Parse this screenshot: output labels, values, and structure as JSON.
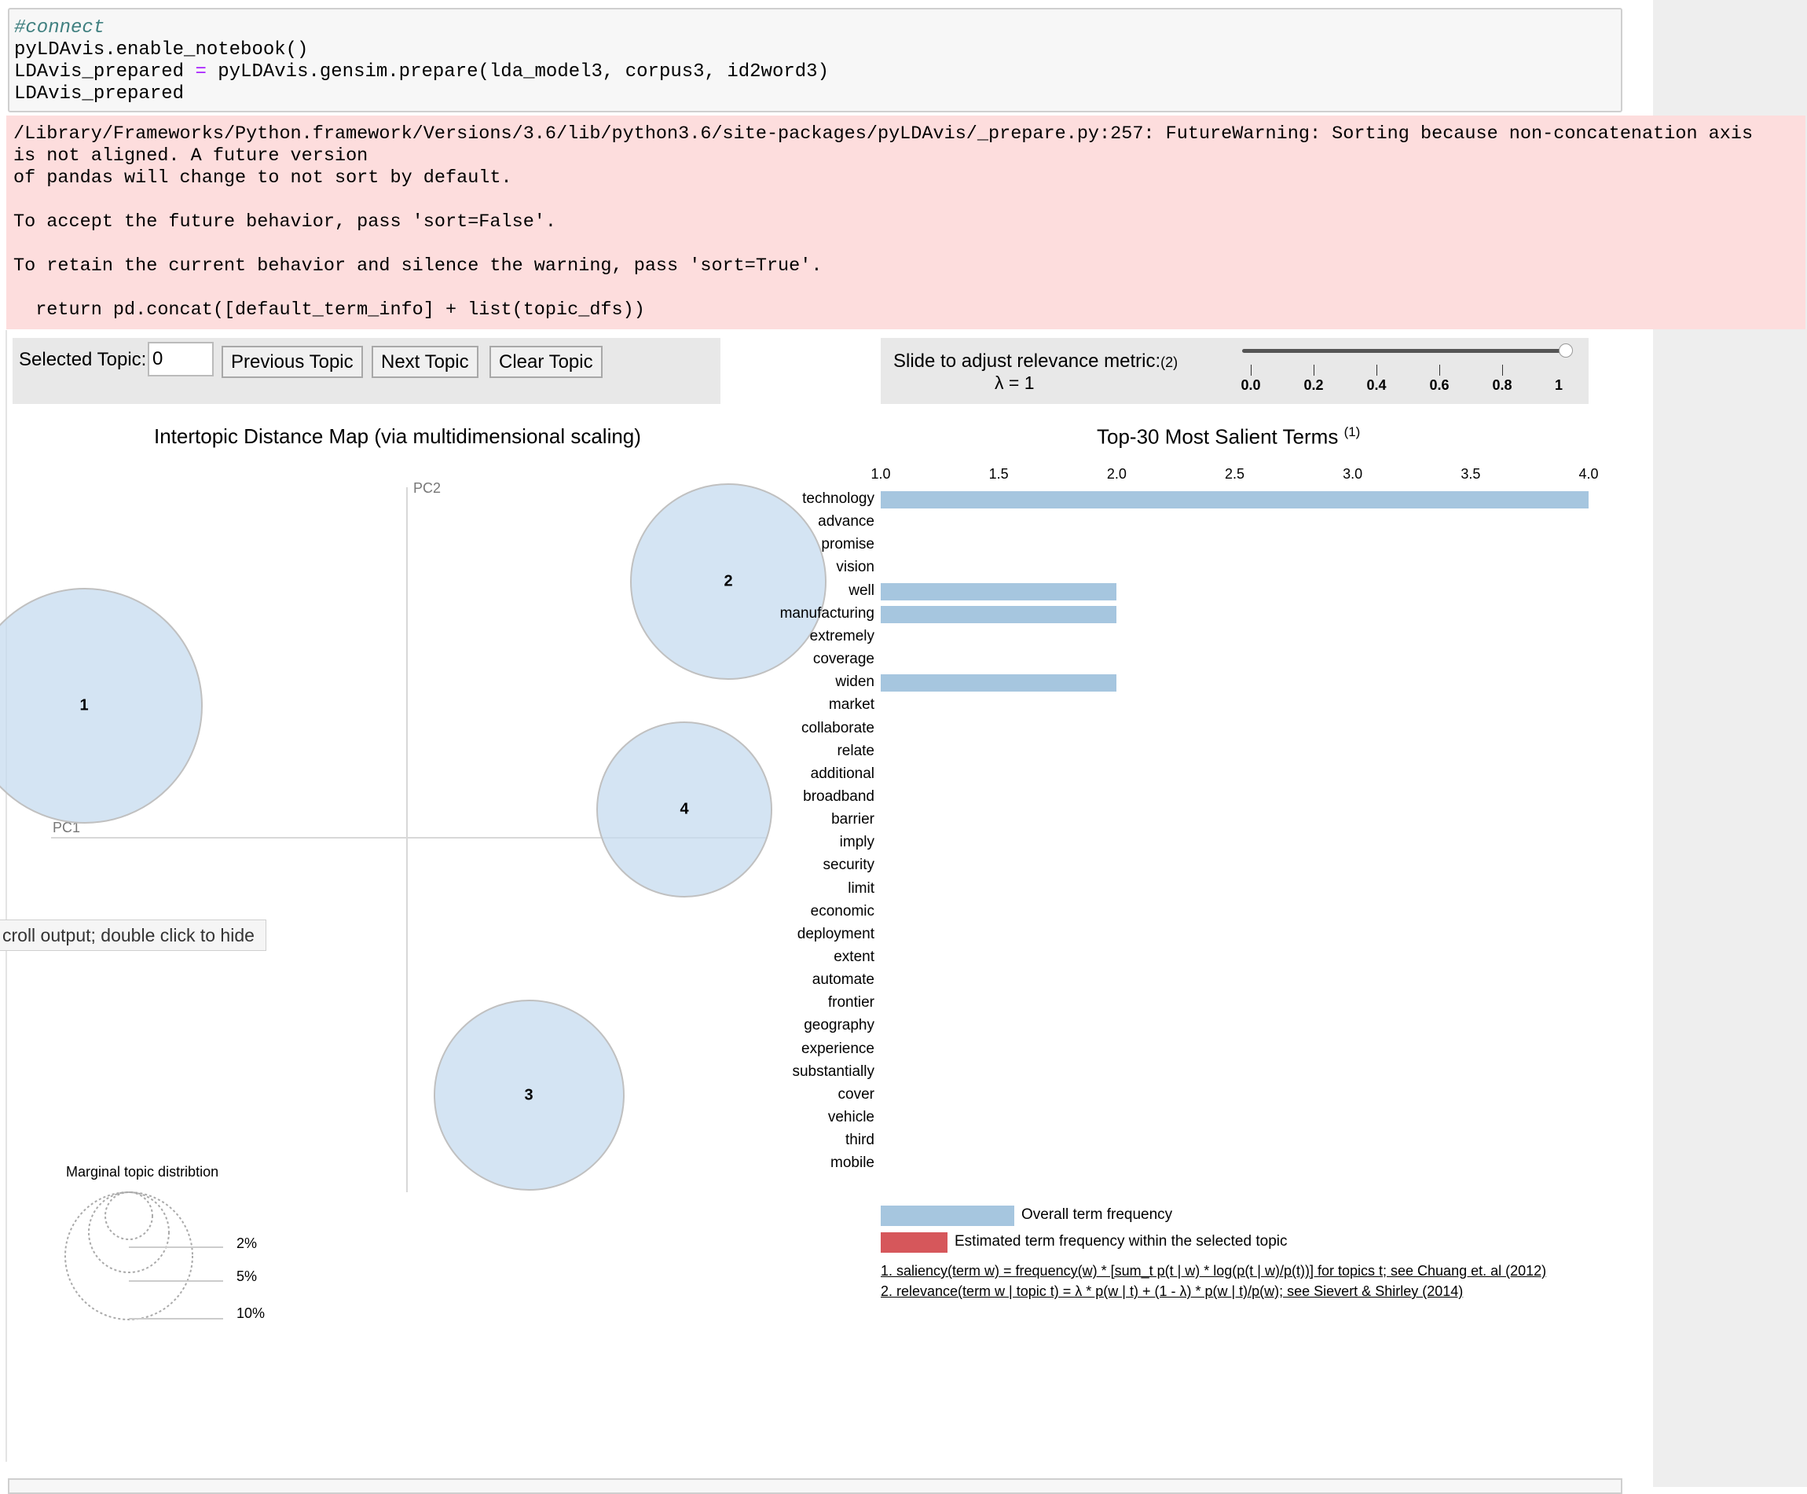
{
  "code_cell": {
    "lines": [
      "#connect",
      "pyLDAvis.enable_notebook()",
      "LDAvis_prepared = pyLDAvis.gensim.prepare(lda_model3, corpus3, id2word3)",
      "LDAvis_prepared"
    ],
    "line2_left": "LDAvis_prepared ",
    "line2_op": "=",
    "line2_right": " pyLDAvis.gensim.prepare(lda_model3, corpus3, id2word3)"
  },
  "warning": {
    "text": "/Library/Frameworks/Python.framework/Versions/3.6/lib/python3.6/site-packages/pyLDAvis/_prepare.py:257: FutureWarning: Sorting because non-concatenation axis\nis not aligned. A future version\nof pandas will change to not sort by default.\n\nTo accept the future behavior, pass 'sort=False'.\n\nTo retain the current behavior and silence the warning, pass 'sort=True'.\n\n  return pd.concat([default_term_info] + list(topic_dfs))"
  },
  "topic_controls": {
    "label": "Selected Topic:",
    "value": "0",
    "prev": "Previous Topic",
    "next": "Next Topic",
    "clear": "Clear Topic"
  },
  "relevance": {
    "label": "Slide to adjust relevance metric:",
    "note": "(2)",
    "lambda_text": "λ = 1",
    "slider_value": 1,
    "ticks": [
      "0.0",
      "0.2",
      "0.4",
      "0.6",
      "0.8",
      "1"
    ]
  },
  "intertopic": {
    "title": "Intertopic Distance Map (via multidimensional scaling)",
    "pc1": "PC1",
    "pc2": "PC2",
    "topics": [
      "1",
      "2",
      "3",
      "4"
    ],
    "tooltip": "croll output; double click to hide",
    "marginal_title": "Marginal topic distribtion",
    "marginal_labels": [
      "2%",
      "5%",
      "10%"
    ]
  },
  "chart_data": {
    "type": "bar",
    "title": "Top-30 Most Salient Terms",
    "title_note": "(1)",
    "xlim": [
      1.0,
      4.0
    ],
    "x_ticks": [
      "1.0",
      "1.5",
      "2.0",
      "2.5",
      "3.0",
      "3.5",
      "4.0"
    ],
    "categories": [
      "technology",
      "advance",
      "promise",
      "vision",
      "well",
      "manufacturing",
      "extremely",
      "coverage",
      "widen",
      "market",
      "collaborate",
      "relate",
      "additional",
      "broadband",
      "barrier",
      "imply",
      "security",
      "limit",
      "economic",
      "deployment",
      "extent",
      "automate",
      "frontier",
      "geography",
      "experience",
      "substantially",
      "cover",
      "vehicle",
      "third",
      "mobile"
    ],
    "series": [
      {
        "name": "Overall term frequency",
        "color": "#a6c6df",
        "values": [
          4,
          1,
          1,
          1,
          2,
          2,
          1,
          1,
          2,
          1,
          1,
          1,
          1,
          1,
          1,
          1,
          1,
          1,
          1,
          1,
          1,
          1,
          1,
          1,
          1,
          1,
          1,
          1,
          1,
          1
        ]
      }
    ],
    "legend": {
      "overall": "Overall term frequency",
      "estimated": "Estimated term frequency within the selected topic",
      "overall_color": "#a6c6df",
      "estimated_color": "#d6575b"
    },
    "footnotes": [
      "1. saliency(term w) = frequency(w) * [sum_t p(t | w) * log(p(t | w)/p(t))] for topics t; see Chuang et. al (2012)",
      "2. relevance(term w | topic t) = λ * p(w | t) + (1 - λ) * p(w | t)/p(w); see Sievert & Shirley (2014)"
    ]
  }
}
